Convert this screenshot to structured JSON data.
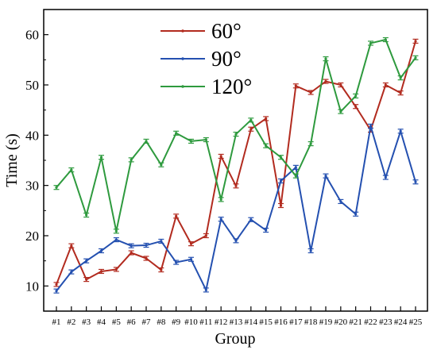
{
  "chart_data": {
    "type": "line",
    "title": "",
    "xlabel": "Group",
    "ylabel": "Time (s)",
    "categories": [
      "#1",
      "#2",
      "#3",
      "#4",
      "#5",
      "#6",
      "#7",
      "#8",
      "#9",
      "#10",
      "#11",
      "#12",
      "#13",
      "#14",
      "#15",
      "#16",
      "#17",
      "#18",
      "#19",
      "#20",
      "#21",
      "#22",
      "#23",
      "#24",
      "#25"
    ],
    "yticks": [
      10,
      20,
      30,
      40,
      50,
      60
    ],
    "ylim": [
      5,
      65
    ],
    "legend_position": "top-center",
    "grid": false,
    "error_bars": true,
    "series": [
      {
        "name": "60°",
        "color": "#b22b1f",
        "values": [
          10.3,
          18.0,
          11.3,
          12.9,
          13.3,
          16.6,
          15.5,
          13.2,
          23.9,
          18.4,
          20.0,
          35.8,
          29.9,
          41.2,
          43.3,
          26.0,
          49.8,
          48.5,
          50.7,
          50.0,
          45.7,
          41.0,
          50.0,
          48.4,
          58.7
        ]
      },
      {
        "name": "90°",
        "color": "#2450b0",
        "values": [
          9.0,
          12.8,
          15.0,
          17.0,
          19.2,
          18.0,
          18.1,
          18.9,
          14.7,
          15.3,
          9.2,
          23.3,
          19.0,
          23.2,
          21.1,
          30.9,
          33.6,
          17.0,
          31.9,
          26.8,
          24.3,
          41.8,
          31.6,
          40.8,
          30.7
        ]
      },
      {
        "name": "120°",
        "color": "#2e9a3e",
        "values": [
          29.6,
          33.1,
          24.1,
          35.6,
          20.9,
          35.1,
          38.8,
          34.1,
          40.4,
          38.8,
          39.1,
          27.2,
          40.2,
          43.0,
          37.9,
          35.6,
          31.9,
          38.3,
          55.2,
          44.7,
          47.8,
          58.3,
          59.0,
          51.4,
          55.4
        ]
      }
    ]
  }
}
